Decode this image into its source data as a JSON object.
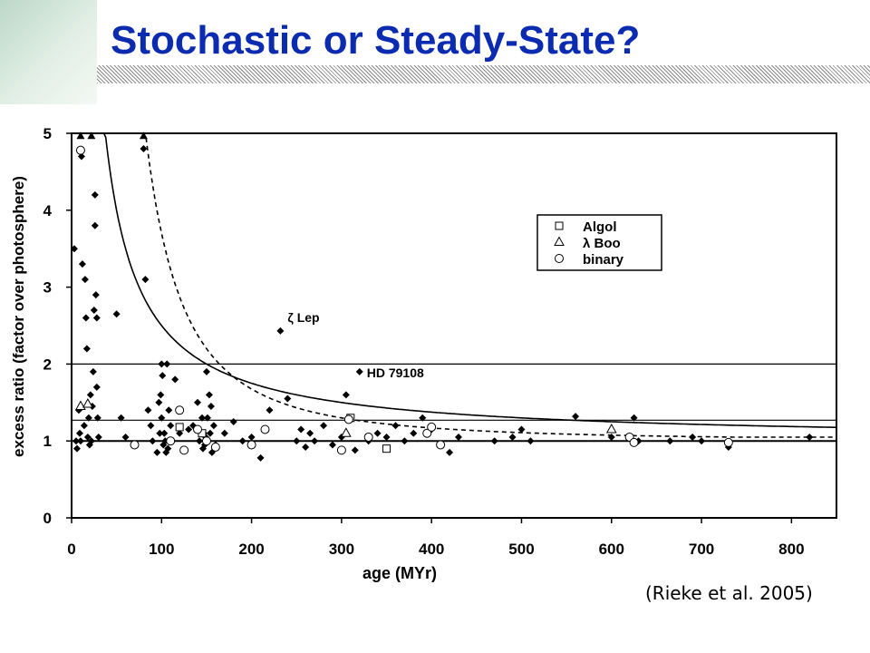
{
  "slide": {
    "title": "Stochastic or Steady-State?",
    "citation": "(Rieke et al. 2005)"
  },
  "chart_data": {
    "type": "scatter",
    "xlabel": "age (MYr)",
    "ylabel": "excess ratio (factor over photosphere)",
    "xlim": [
      0,
      850
    ],
    "ylim": [
      0,
      5
    ],
    "xticks": [
      0,
      100,
      200,
      300,
      400,
      500,
      600,
      700,
      800
    ],
    "yticks": [
      0,
      1,
      2,
      3,
      4,
      5
    ],
    "legend": {
      "placement": "upper-right",
      "entries": [
        "Algol",
        "λ Boo",
        "binary"
      ]
    },
    "annotations": [
      {
        "text": "ζ Lep",
        "x": 232,
        "y": 2.45
      },
      {
        "text": "HD 79108",
        "x": 320,
        "y": 1.9
      }
    ],
    "horizontal_lines": [
      1.0,
      1.27,
      2.0
    ],
    "curves": [
      {
        "style": "solid",
        "model": "1 + A/t",
        "A": 150,
        "x_start": 36
      },
      {
        "style": "dashed",
        "model": "1 + B/t^2",
        "B": 27000,
        "x_start": 59,
        "y_end": 1.05
      }
    ],
    "series": [
      {
        "marker": "filled-diamond",
        "points": [
          [
            3,
            3.5
          ],
          [
            5,
            1.0
          ],
          [
            6,
            0.9
          ],
          [
            8,
            1.4
          ],
          [
            9,
            1.1
          ],
          [
            10,
            1.0
          ],
          [
            11,
            4.7
          ],
          [
            12,
            3.3
          ],
          [
            14,
            1.2
          ],
          [
            15,
            3.1
          ],
          [
            16,
            2.6
          ],
          [
            17,
            2.2
          ],
          [
            18,
            1.05
          ],
          [
            19,
            1.3
          ],
          [
            20,
            0.95
          ],
          [
            21,
            1.6
          ],
          [
            22,
            1.0
          ],
          [
            23,
            1.45
          ],
          [
            24,
            1.9
          ],
          [
            25,
            2.7
          ],
          [
            26,
            4.2
          ],
          [
            26,
            3.8
          ],
          [
            27,
            2.9
          ],
          [
            28,
            1.7
          ],
          [
            28,
            2.6
          ],
          [
            29,
            1.3
          ],
          [
            30,
            1.05
          ],
          [
            50,
            2.65
          ],
          [
            55,
            1.3
          ],
          [
            60,
            1.05
          ],
          [
            80,
            4.8
          ],
          [
            82,
            3.1
          ],
          [
            85,
            1.4
          ],
          [
            88,
            1.2
          ],
          [
            90,
            1.0
          ],
          [
            95,
            0.85
          ],
          [
            97,
            1.5
          ],
          [
            98,
            1.1
          ],
          [
            99,
            1.6
          ],
          [
            100,
            1.3
          ],
          [
            100,
            2.0
          ],
          [
            101,
            1.85
          ],
          [
            102,
            0.95
          ],
          [
            103,
            1.1
          ],
          [
            104,
            1.0
          ],
          [
            105,
            0.85
          ],
          [
            106,
            2.0
          ],
          [
            107,
            0.9
          ],
          [
            108,
            1.4
          ],
          [
            110,
            1.2
          ],
          [
            112,
            1.0
          ],
          [
            115,
            1.8
          ],
          [
            120,
            1.1
          ],
          [
            130,
            1.15
          ],
          [
            135,
            1.2
          ],
          [
            140,
            1.5
          ],
          [
            142,
            1.0
          ],
          [
            145,
            1.3
          ],
          [
            146,
            0.9
          ],
          [
            147,
            1.1
          ],
          [
            148,
            0.95
          ],
          [
            149,
            1.05
          ],
          [
            150,
            1.9
          ],
          [
            151,
            1.3
          ],
          [
            152,
            1.0
          ],
          [
            153,
            1.6
          ],
          [
            154,
            1.1
          ],
          [
            155,
            1.45
          ],
          [
            156,
            0.85
          ],
          [
            158,
            1.2
          ],
          [
            160,
            0.95
          ],
          [
            170,
            1.1
          ],
          [
            180,
            1.25
          ],
          [
            190,
            1.0
          ],
          [
            200,
            1.05
          ],
          [
            210,
            0.78
          ],
          [
            220,
            1.4
          ],
          [
            232,
            2.43
          ],
          [
            240,
            1.55
          ],
          [
            250,
            1.0
          ],
          [
            255,
            1.15
          ],
          [
            260,
            0.92
          ],
          [
            265,
            1.1
          ],
          [
            270,
            1.0
          ],
          [
            280,
            1.2
          ],
          [
            290,
            0.95
          ],
          [
            300,
            1.05
          ],
          [
            305,
            1.6
          ],
          [
            310,
            1.3
          ],
          [
            315,
            0.88
          ],
          [
            320,
            1.9
          ],
          [
            330,
            1.0
          ],
          [
            340,
            1.1
          ],
          [
            350,
            1.05
          ],
          [
            360,
            1.2
          ],
          [
            370,
            1.0
          ],
          [
            380,
            1.1
          ],
          [
            390,
            1.3
          ],
          [
            400,
            1.15
          ],
          [
            410,
            0.95
          ],
          [
            420,
            0.85
          ],
          [
            430,
            1.05
          ],
          [
            470,
            1.0
          ],
          [
            490,
            1.05
          ],
          [
            500,
            1.15
          ],
          [
            510,
            1.0
          ],
          [
            560,
            1.32
          ],
          [
            600,
            1.05
          ],
          [
            625,
            1.3
          ],
          [
            630,
            1.0
          ],
          [
            665,
            1.0
          ],
          [
            690,
            1.05
          ],
          [
            700,
            1.0
          ],
          [
            730,
            0.92
          ],
          [
            820,
            1.05
          ]
        ]
      },
      {
        "marker": "filled-triangle",
        "points": [
          [
            10,
            4.95
          ],
          [
            22,
            4.95
          ],
          [
            80,
            4.95
          ]
        ]
      },
      {
        "marker": "open-square",
        "points": [
          [
            120,
            1.18
          ],
          [
            145,
            1.1
          ],
          [
            310,
            1.3
          ],
          [
            350,
            0.9
          ]
        ]
      },
      {
        "marker": "open-triangle",
        "points": [
          [
            10,
            1.45
          ],
          [
            18,
            1.48
          ],
          [
            305,
            1.1
          ],
          [
            600,
            1.15
          ]
        ]
      },
      {
        "marker": "open-circle",
        "points": [
          [
            10,
            4.78
          ],
          [
            70,
            0.95
          ],
          [
            110,
            1.0
          ],
          [
            120,
            1.4
          ],
          [
            125,
            0.88
          ],
          [
            140,
            1.15
          ],
          [
            150,
            1.0
          ],
          [
            160,
            0.92
          ],
          [
            200,
            0.95
          ],
          [
            215,
            1.15
          ],
          [
            300,
            0.88
          ],
          [
            308,
            1.28
          ],
          [
            330,
            1.05
          ],
          [
            395,
            1.1
          ],
          [
            400,
            1.18
          ],
          [
            410,
            0.95
          ],
          [
            620,
            1.05
          ],
          [
            625,
            0.98
          ],
          [
            730,
            0.98
          ]
        ]
      }
    ]
  }
}
